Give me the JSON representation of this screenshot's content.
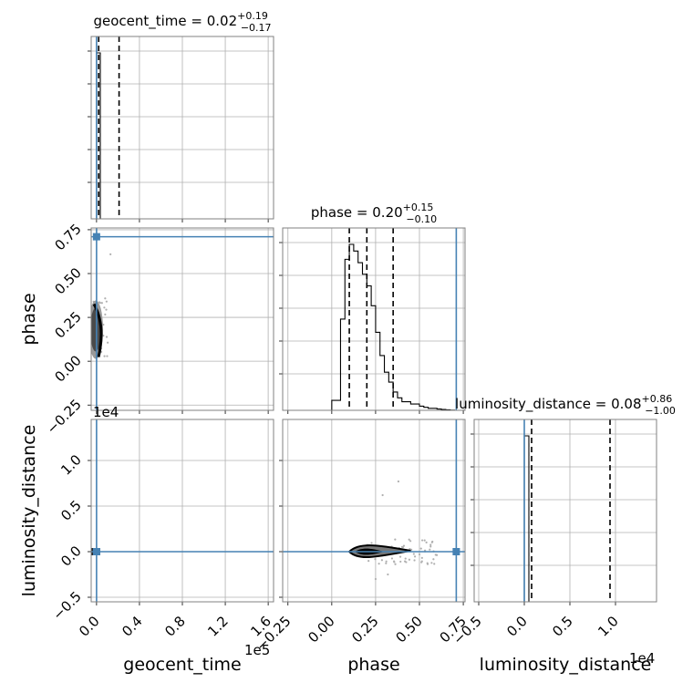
{
  "chart_data": {
    "type": "corner",
    "title": "",
    "parameters": [
      "geocent_time",
      "phase",
      "luminosity_distance"
    ],
    "axis_labels": {
      "geocent_time": "geocent_time",
      "phase": "phase",
      "luminosity_distance": "luminosity_distance"
    },
    "titles": {
      "geocent_time": {
        "prefix": "geocent_time = ",
        "median": "0.02",
        "plus": "+0.19",
        "minus": "−0.17"
      },
      "phase": {
        "prefix": "phase = ",
        "median": "0.20",
        "plus": "+0.15",
        "minus": "−0.10"
      },
      "luminosity_distance": {
        "prefix": "luminosity_distance = ",
        "median": "0.08",
        "plus": "+0.86",
        "minus": "−1.00"
      }
    },
    "offset_labels": {
      "geocent_time": "1e5",
      "luminosity_distance": "1e4"
    },
    "ranges": {
      "geocent_time": [
        -0.05,
        1.65
      ],
      "phase": [
        -0.28,
        0.76
      ],
      "luminosity_distance": [
        -0.55,
        1.45
      ]
    },
    "ticks": {
      "geocent_time": [
        0.0,
        0.4,
        0.8,
        1.2,
        1.6
      ],
      "phase": [
        -0.25,
        0.0,
        0.25,
        0.5,
        0.75
      ],
      "luminosity_distance": [
        -0.5,
        0.0,
        0.5,
        1.0
      ]
    },
    "tick_labels": {
      "geocent_time": [
        "0.0",
        "0.4",
        "0.8",
        "1.2",
        "1.6"
      ],
      "phase": [
        "−0.25",
        "0.00",
        "0.25",
        "0.50",
        "0.75"
      ],
      "luminosity_distance": [
        "−0.5",
        "0.0",
        "0.5",
        "1.0"
      ]
    },
    "truth": {
      "geocent_time": 0.0,
      "phase": 0.71,
      "luminosity_distance": 0.0
    },
    "quantiles": {
      "geocent_time": [
        -0.15,
        0.02,
        0.21
      ],
      "phase": [
        0.1,
        0.2,
        0.35
      ],
      "luminosity_distance": [
        -0.92,
        0.08,
        0.94
      ]
    },
    "histograms": {
      "geocent_time": {
        "bins": [
          -0.05,
          0.0,
          0.035
        ],
        "values": [
          0.0,
          1.0
        ]
      },
      "phase": {
        "bins": [
          0.0,
          0.05,
          0.075,
          0.1,
          0.125,
          0.15,
          0.175,
          0.2,
          0.225,
          0.25,
          0.275,
          0.3,
          0.325,
          0.35,
          0.375,
          0.4,
          0.45,
          0.5,
          0.525,
          0.55,
          0.6,
          0.625,
          0.65,
          0.675,
          0.7
        ],
        "values": [
          0.06,
          0.55,
          0.91,
          1.0,
          0.96,
          0.89,
          0.82,
          0.75,
          0.63,
          0.47,
          0.33,
          0.23,
          0.17,
          0.11,
          0.075,
          0.052,
          0.038,
          0.025,
          0.018,
          0.012,
          0.008,
          0.005,
          0.003,
          0.001
        ]
      },
      "luminosity_distance": {
        "bins": [
          -0.02,
          0.0,
          0.05
        ],
        "values": [
          0.0,
          1.0
        ]
      }
    },
    "grid": true,
    "truth_color": "#4682b4",
    "contour_color": "#000000",
    "sample_color": "#b0b0b0"
  }
}
